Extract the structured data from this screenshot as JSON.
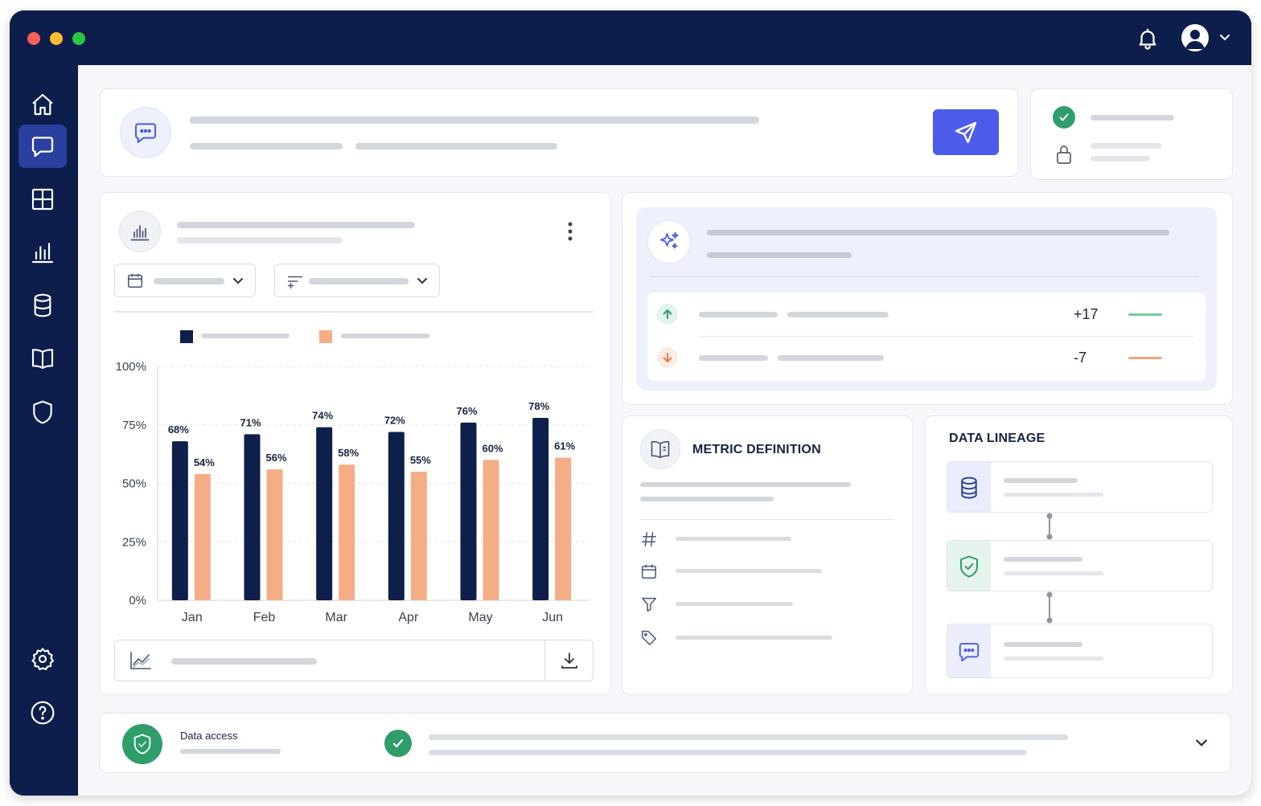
{
  "titlebar": {
    "traffic_lights": [
      "#ff5f57",
      "#febc2e",
      "#28c840"
    ],
    "icons": [
      "bell-icon",
      "user-avatar-icon",
      "chevron-down-icon"
    ]
  },
  "sidebar": {
    "items": [
      {
        "icon": "home-icon",
        "active": false
      },
      {
        "icon": "chat-icon",
        "active": true
      },
      {
        "icon": "grid-icon",
        "active": false
      },
      {
        "icon": "bar-chart-icon",
        "active": false
      },
      {
        "icon": "database-icon",
        "active": false
      },
      {
        "icon": "book-icon",
        "active": false
      },
      {
        "icon": "shield-icon",
        "active": false
      }
    ],
    "bottom": [
      {
        "icon": "gear-icon"
      },
      {
        "icon": "help-icon"
      }
    ]
  },
  "colors": {
    "navy": "#0d1e4c",
    "accent": "#4b5bea",
    "series_dark": "#0e1f4b",
    "series_light": "#f5ad86",
    "up": "#2e9d6a",
    "down": "#ef7b4a"
  },
  "insights": {
    "rows": [
      {
        "direction": "up",
        "value": "+17"
      },
      {
        "direction": "down",
        "value": "-7"
      }
    ]
  },
  "chart_data": {
    "type": "bar",
    "categories": [
      "Jan",
      "Feb",
      "Mar",
      "Apr",
      "May",
      "Jun"
    ],
    "series": [
      {
        "values": [
          68,
          71,
          74,
          72,
          76,
          78
        ],
        "labels": [
          "68%",
          "71%",
          "74%",
          "72%",
          "76%",
          "78%"
        ],
        "color": "#0e1f4b"
      },
      {
        "values": [
          54,
          56,
          58,
          55,
          60,
          61
        ],
        "labels": [
          "54%",
          "56%",
          "58%",
          "55%",
          "60%",
          "61%"
        ],
        "color": "#f5ad86"
      }
    ],
    "y_ticks": [
      "0%",
      "25%",
      "50%",
      "75%",
      "100%"
    ],
    "ylim": [
      0,
      100
    ],
    "grid": true,
    "legend": "top-left"
  },
  "metric_definition": {
    "title": "METRIC DEFINITION",
    "fields": [
      "hash-icon",
      "calendar-icon",
      "filter-icon",
      "tag-icon"
    ]
  },
  "data_lineage": {
    "title": "DATA LINEAGE",
    "nodes": [
      "database-icon",
      "shield-check-icon",
      "chat-icon"
    ]
  },
  "access": {
    "label": "Data access"
  }
}
